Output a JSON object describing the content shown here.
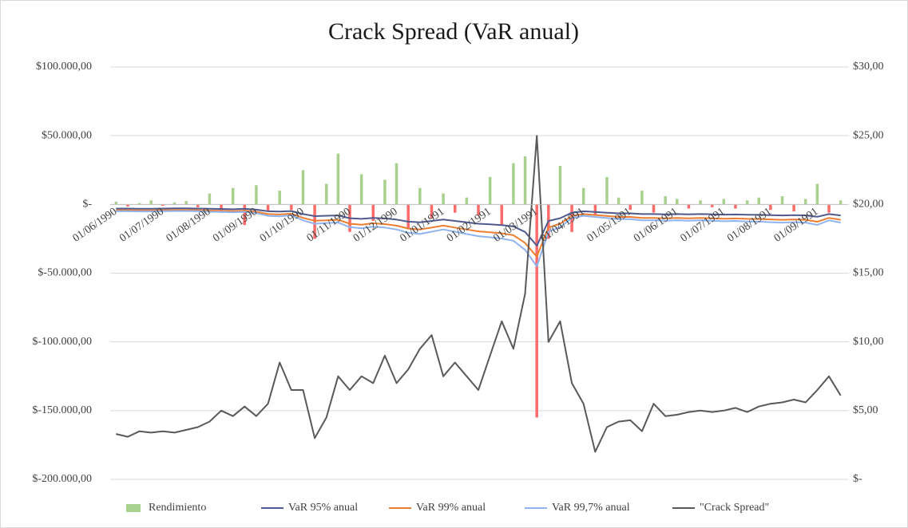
{
  "chart_data": {
    "type": "combo",
    "title": "Crack Spread (VaR anual)",
    "categories": [
      "01/06/1990",
      null,
      null,
      null,
      "01/07/1990",
      null,
      null,
      null,
      "01/08/1990",
      null,
      null,
      null,
      "01/09/1990",
      null,
      null,
      null,
      "01/10/1990",
      null,
      null,
      null,
      "01/11/1990",
      null,
      null,
      null,
      "01/12/1990",
      null,
      null,
      null,
      "01/01/1991",
      null,
      null,
      null,
      "01/02/1991",
      null,
      null,
      null,
      "01/03/1991",
      null,
      null,
      null,
      "01/04/1991",
      null,
      null,
      null,
      "01/05/1991",
      null,
      null,
      null,
      "01/06/1991",
      null,
      null,
      null,
      "01/07/1991",
      null,
      null,
      null,
      "01/08/1991",
      null,
      null,
      null,
      "01/09/1991",
      null,
      null
    ],
    "ylim": [
      -200000,
      100000
    ],
    "yticks": [
      {
        "value": -200000,
        "label": "$-200.000,00"
      },
      {
        "value": -150000,
        "label": "$-150.000,00"
      },
      {
        "value": -100000,
        "label": "$-100.000,00"
      },
      {
        "value": -50000,
        "label": "$-50.000,00"
      },
      {
        "value": 0,
        "label": "$-"
      },
      {
        "value": 50000,
        "label": "$50.000,00"
      },
      {
        "value": 100000,
        "label": "$100.000,00"
      }
    ],
    "y2lim": [
      0,
      30
    ],
    "y2ticks": [
      {
        "value": 0,
        "label": "$-"
      },
      {
        "value": 5,
        "label": "$5,00"
      },
      {
        "value": 10,
        "label": "$10,00"
      },
      {
        "value": 15,
        "label": "$15,00"
      },
      {
        "value": 20,
        "label": "$20,00"
      },
      {
        "value": 25,
        "label": "$25,00"
      },
      {
        "value": 30,
        "label": "$30,00"
      }
    ],
    "grid": true,
    "legend": "bottom",
    "series": [
      {
        "name": "Rendimiento",
        "kind": "bar",
        "color": "#a9d18e",
        "negative_color": "#ff6b6b",
        "values": [
          2000,
          -1500,
          1000,
          3000,
          -1000,
          1500,
          2500,
          -2000,
          8000,
          -6000,
          12000,
          -15000,
          14000,
          -5000,
          10000,
          -4000,
          25000,
          -25000,
          15000,
          37000,
          -20000,
          22000,
          -12000,
          18000,
          30000,
          -18000,
          12000,
          -10000,
          8000,
          -6000,
          5000,
          -8000,
          20000,
          -15000,
          30000,
          35000,
          -155000,
          -25000,
          28000,
          -20000,
          12000,
          -8000,
          20000,
          5000,
          -4000,
          10000,
          -6000,
          6000,
          4000,
          -3000,
          3000,
          -2000,
          4000,
          -3000,
          3000,
          5000,
          -4000,
          6000,
          -5000,
          4000,
          15000,
          -6000,
          3000
        ]
      },
      {
        "name": "VaR 95% anual",
        "kind": "line",
        "color": "#4e5a8e",
        "values": [
          -3000,
          -3000,
          -3100,
          -3100,
          -3000,
          -2900,
          -2900,
          -3000,
          -3200,
          -3300,
          -3500,
          -3200,
          -3800,
          -5000,
          -5200,
          -4800,
          -7000,
          -8500,
          -8200,
          -8000,
          -10000,
          -10500,
          -9800,
          -10200,
          -11000,
          -12500,
          -13000,
          -12000,
          -11000,
          -12000,
          -13000,
          -14000,
          -14500,
          -15000,
          -16000,
          -20000,
          -30000,
          -12000,
          -10000,
          -6000,
          -5000,
          -5500,
          -6000,
          -6500,
          -6500,
          -7000,
          -7000,
          -7200,
          -7000,
          -7200,
          -7000,
          -7200,
          -7400,
          -7300,
          -7500,
          -7600,
          -7800,
          -8000,
          -7800,
          -8000,
          -9000,
          -7000,
          -8000
        ]
      },
      {
        "name": "VaR 99% anual",
        "kind": "line",
        "color": "#ed7d31",
        "values": [
          -4200,
          -4200,
          -4300,
          -4300,
          -4200,
          -4100,
          -4100,
          -4200,
          -4500,
          -4600,
          -4900,
          -4500,
          -5300,
          -7000,
          -7300,
          -6700,
          -9800,
          -11900,
          -11500,
          -11200,
          -14000,
          -14700,
          -13700,
          -14300,
          -15400,
          -17500,
          -18200,
          -16800,
          -15400,
          -16800,
          -18200,
          -19600,
          -20300,
          -21000,
          -22400,
          -28000,
          -38000,
          -16800,
          -14000,
          -8400,
          -7000,
          -7700,
          -8400,
          -9100,
          -9100,
          -9800,
          -9800,
          -10100,
          -9800,
          -10100,
          -9800,
          -10100,
          -10400,
          -10200,
          -10500,
          -10600,
          -10900,
          -11200,
          -10900,
          -11200,
          -12600,
          -9800,
          -11200
        ]
      },
      {
        "name": "VaR 99,7% anual",
        "kind": "line",
        "color": "#8fb4f0",
        "values": [
          -5000,
          -5000,
          -5100,
          -5100,
          -5000,
          -4800,
          -4800,
          -5000,
          -5300,
          -5400,
          -5800,
          -5300,
          -6300,
          -8300,
          -8600,
          -7900,
          -11600,
          -14000,
          -13500,
          -13200,
          -16500,
          -17300,
          -16200,
          -16800,
          -18200,
          -20600,
          -21500,
          -19800,
          -18200,
          -19800,
          -21500,
          -23100,
          -23900,
          -24800,
          -26400,
          -33000,
          -45000,
          -19800,
          -16500,
          -9900,
          -8300,
          -9100,
          -9900,
          -10700,
          -10700,
          -11600,
          -11600,
          -11900,
          -11600,
          -11900,
          -11600,
          -11900,
          -12200,
          -12000,
          -12400,
          -12500,
          -12900,
          -13200,
          -12900,
          -13200,
          -14900,
          -11600,
          -13200
        ]
      },
      {
        "name": "\"Crack Spread\"",
        "kind": "line",
        "axis": "y2",
        "color": "#595959",
        "values": [
          3.3,
          3.1,
          3.5,
          3.4,
          3.5,
          3.4,
          3.6,
          3.8,
          4.2,
          5.0,
          4.6,
          5.3,
          4.6,
          5.5,
          8.5,
          6.5,
          6.5,
          3.0,
          4.5,
          7.5,
          6.5,
          7.5,
          7.0,
          9.0,
          7.0,
          8.0,
          9.5,
          10.5,
          7.5,
          8.5,
          7.5,
          6.5,
          9.0,
          11.5,
          9.5,
          13.5,
          25,
          10.0,
          11.5,
          7.0,
          5.5,
          2.0,
          3.8,
          4.2,
          4.3,
          3.5,
          5.5,
          4.6,
          4.7,
          4.9,
          5.0,
          4.9,
          5.0,
          5.2,
          4.9,
          5.3,
          5.5,
          5.6,
          5.8,
          5.6,
          6.5,
          7.5,
          6.1
        ]
      }
    ]
  }
}
